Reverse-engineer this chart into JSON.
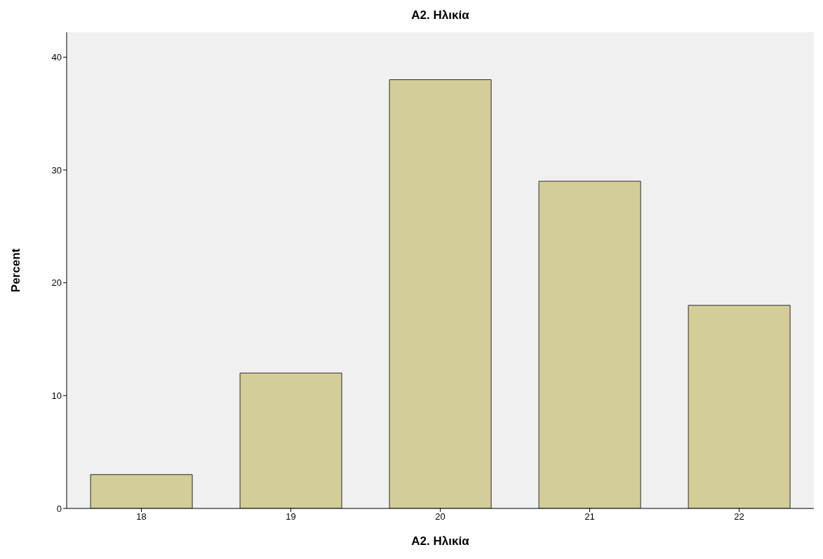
{
  "chart_data": {
    "type": "bar",
    "title": "A2. Ηλικία",
    "xlabel": "A2. Ηλικία",
    "ylabel": "Percent",
    "categories": [
      "18",
      "19",
      "20",
      "21",
      "22"
    ],
    "values": [
      3,
      12,
      38,
      29,
      18
    ],
    "color": "#d3ce97",
    "ylim": [
      0,
      42.2
    ],
    "yticks": [
      0,
      10,
      20,
      30,
      40
    ],
    "grid": false
  }
}
